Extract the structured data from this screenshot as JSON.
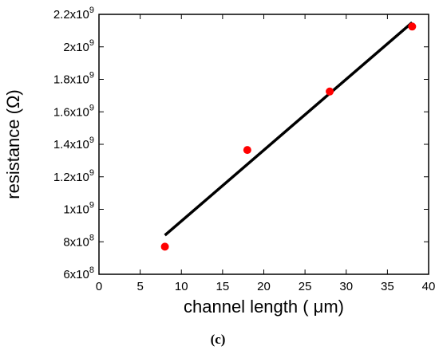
{
  "chart_data": {
    "type": "scatter",
    "panel_label": "(c)",
    "title": "",
    "xlabel": "channel length ( μm)",
    "ylabel": "resistance (Ω)",
    "xlim": [
      0,
      40
    ],
    "ylim": [
      600000000,
      2200000000
    ],
    "grid": false,
    "x_ticks": [
      0,
      5,
      10,
      15,
      20,
      25,
      30,
      35,
      40
    ],
    "x_tick_labels": [
      "0",
      "5",
      "10",
      "15",
      "20",
      "25",
      "30",
      "35",
      "40"
    ],
    "y_ticks": [
      600000000,
      800000000,
      1000000000,
      1200000000,
      1400000000,
      1600000000,
      1800000000,
      2000000000,
      2200000000
    ],
    "y_tick_labels": [
      {
        "mantissa": "6x10",
        "exp": "8"
      },
      {
        "mantissa": "8x10",
        "exp": "8"
      },
      {
        "mantissa": "1x10",
        "exp": "9"
      },
      {
        "mantissa": "1.2x10",
        "exp": "9"
      },
      {
        "mantissa": "1.4x10",
        "exp": "9"
      },
      {
        "mantissa": "1.6x10",
        "exp": "9"
      },
      {
        "mantissa": "1.8x10",
        "exp": "9"
      },
      {
        "mantissa": "2x10",
        "exp": "9"
      },
      {
        "mantissa": "2.2x10",
        "exp": "9"
      }
    ],
    "series": [
      {
        "kind": "points",
        "color": "#ff0000",
        "x": [
          8,
          18,
          28,
          38
        ],
        "y": [
          770000000,
          1365000000,
          1725000000,
          2125000000
        ]
      },
      {
        "kind": "fit-line",
        "color": "#000000",
        "x": [
          8,
          38
        ],
        "y": [
          840000000,
          2150000000
        ]
      }
    ]
  }
}
